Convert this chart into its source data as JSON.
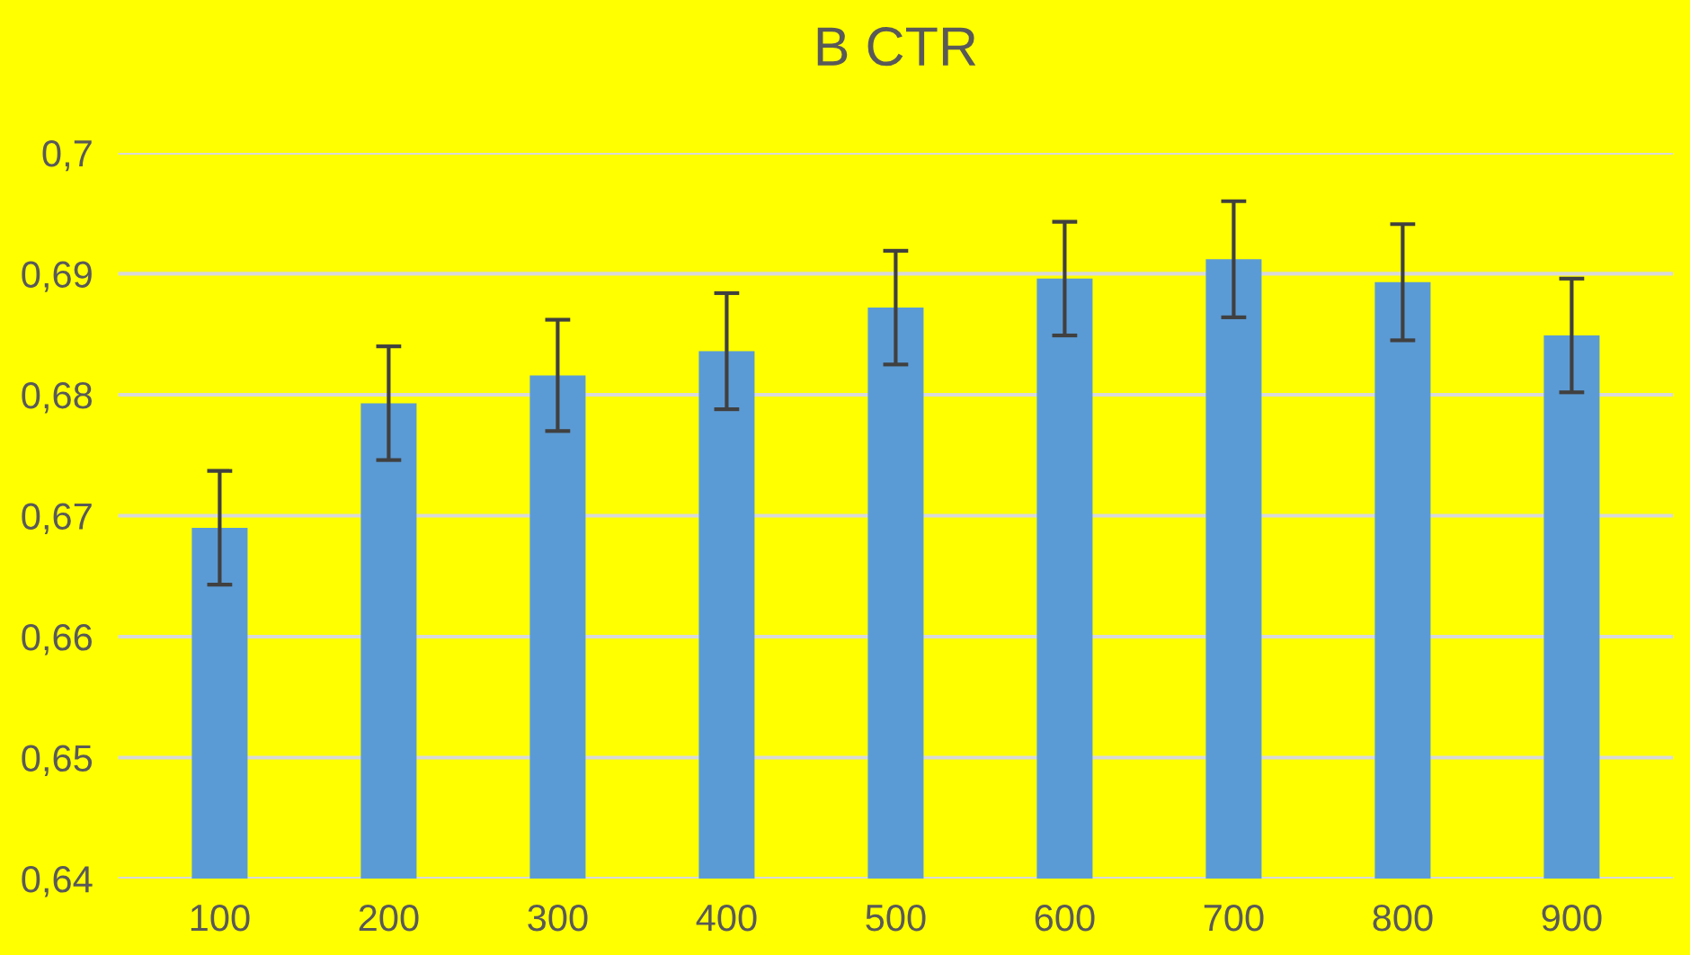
{
  "chart_data": {
    "type": "bar",
    "title": "B CTR",
    "categories": [
      "100",
      "200",
      "300",
      "400",
      "500",
      "600",
      "700",
      "800",
      "900"
    ],
    "values": [
      0.669,
      0.6793,
      0.6816,
      0.6836,
      0.6872,
      0.6896,
      0.6912,
      0.6893,
      0.6849
    ],
    "errors": [
      0.0047,
      0.0047,
      0.0046,
      0.0048,
      0.0047,
      0.0047,
      0.0048,
      0.0048,
      0.0047
    ],
    "color": "#5b9bd5",
    "ylim": [
      0.64,
      0.7
    ],
    "yticks": [
      {
        "value": 0.64,
        "label": "0,64"
      },
      {
        "value": 0.65,
        "label": "0,65"
      },
      {
        "value": 0.66,
        "label": "0,66"
      },
      {
        "value": 0.67,
        "label": "0,67"
      },
      {
        "value": 0.68,
        "label": "0,68"
      },
      {
        "value": 0.69,
        "label": "0,69"
      },
      {
        "value": 0.7,
        "label": "0,7"
      }
    ],
    "grid": "y",
    "legend": false
  }
}
